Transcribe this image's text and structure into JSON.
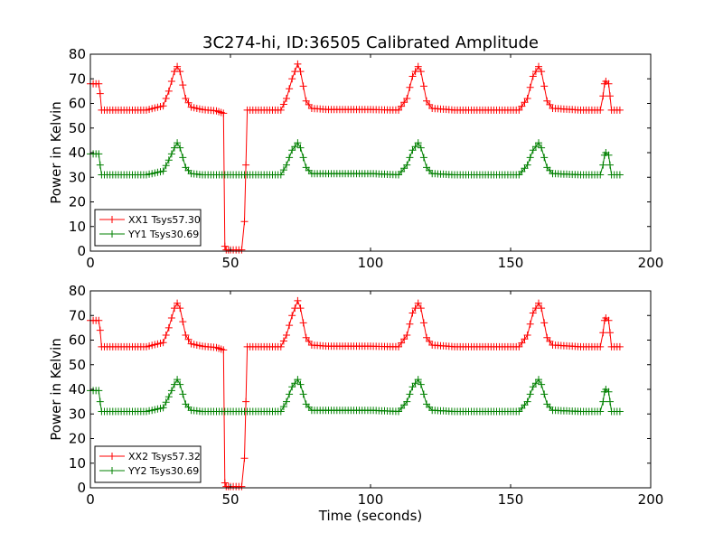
{
  "figure": {
    "title": "3C274-hi, ID:36505 Calibrated Amplitude"
  },
  "chart_data": [
    {
      "type": "line",
      "title": "3C274-hi, ID:36505 Calibrated Amplitude",
      "xlabel": "",
      "ylabel": "Power in Kelvin",
      "xlim": [
        0,
        200
      ],
      "ylim": [
        0,
        80
      ],
      "xticks": [
        "0",
        "50",
        "100",
        "150",
        "200"
      ],
      "yticks": [
        "0",
        "10",
        "20",
        "30",
        "40",
        "50",
        "60",
        "70",
        "80"
      ],
      "grid": false,
      "legend_position": "lower-left",
      "series": [
        {
          "name": "XX1 Tsys57.30",
          "color": "#ff0000",
          "x": [
            0,
            3,
            3.5,
            4,
            10,
            20,
            26,
            28,
            30,
            31,
            32,
            34,
            36,
            40,
            45,
            47.5,
            48,
            48.5,
            50,
            54,
            55,
            55.5,
            56,
            60,
            68,
            70,
            72,
            74,
            75,
            77,
            79,
            85,
            100,
            110,
            113,
            115,
            117,
            118,
            120,
            122,
            130,
            145,
            153,
            156,
            158,
            160,
            161,
            163,
            165,
            175,
            182,
            183,
            183.5,
            184,
            185,
            185.5,
            186,
            189
          ],
          "y": [
            68,
            68,
            64,
            57.3,
            57.3,
            57.3,
            59,
            65,
            73,
            75,
            73,
            62,
            58.5,
            57.5,
            57,
            56,
            2,
            0.5,
            0.5,
            0.5,
            12,
            35,
            57.3,
            57.3,
            57.3,
            62,
            70,
            76,
            73,
            61,
            58,
            57.5,
            57.5,
            57.3,
            62,
            71,
            75,
            73,
            61,
            58,
            57.3,
            57.3,
            57.3,
            62,
            71,
            75,
            73,
            61,
            58,
            57.3,
            57.3,
            63,
            68,
            69,
            68,
            63,
            57.3,
            57.3
          ]
        },
        {
          "name": "YY1 Tsys30.69",
          "color": "#008000",
          "x": [
            0,
            3,
            3.5,
            4,
            10,
            20,
            26,
            28,
            30,
            31,
            32,
            34,
            36,
            40,
            60,
            68,
            70,
            72,
            74,
            75,
            77,
            79,
            85,
            100,
            110,
            113,
            115,
            117,
            118,
            120,
            122,
            130,
            145,
            153,
            156,
            158,
            160,
            161,
            163,
            165,
            175,
            182,
            183,
            183.5,
            184,
            185,
            185.5,
            186,
            189
          ],
          "y": [
            39.5,
            39.5,
            35,
            31,
            31,
            31,
            32.5,
            37,
            42,
            44,
            42,
            34,
            31.5,
            31,
            31,
            31,
            35,
            41,
            44,
            42,
            34,
            31.5,
            31.5,
            31.5,
            31,
            35,
            41,
            44,
            42,
            34,
            31.5,
            31,
            31,
            31,
            35,
            41,
            44,
            42,
            34,
            31.5,
            31,
            31,
            35,
            39,
            40,
            39,
            35,
            31,
            31
          ]
        }
      ]
    },
    {
      "type": "line",
      "title": "",
      "xlabel": "Time (seconds)",
      "ylabel": "Power in Kelvin",
      "xlim": [
        0,
        200
      ],
      "ylim": [
        0,
        80
      ],
      "xticks": [
        "0",
        "50",
        "100",
        "150",
        "200"
      ],
      "yticks": [
        "0",
        "10",
        "20",
        "30",
        "40",
        "50",
        "60",
        "70",
        "80"
      ],
      "grid": false,
      "legend_position": "lower-left",
      "series": [
        {
          "name": "XX2 Tsys57.32",
          "color": "#ff0000",
          "x": [
            0,
            3,
            3.5,
            4,
            10,
            20,
            26,
            28,
            30,
            31,
            32,
            34,
            36,
            40,
            45,
            47.5,
            48,
            48.5,
            50,
            54,
            55,
            55.5,
            56,
            60,
            68,
            70,
            72,
            74,
            75,
            77,
            79,
            85,
            100,
            110,
            113,
            115,
            117,
            118,
            120,
            122,
            130,
            145,
            153,
            156,
            158,
            160,
            161,
            163,
            165,
            175,
            182,
            183,
            183.5,
            184,
            185,
            185.5,
            186,
            189
          ],
          "y": [
            68,
            68,
            64,
            57.3,
            57.3,
            57.3,
            59,
            65,
            73,
            75,
            73,
            62,
            58.5,
            57.5,
            57,
            56,
            2,
            0.5,
            0.5,
            0.5,
            12,
            35,
            57.3,
            57.3,
            57.3,
            62,
            70,
            76,
            73,
            61,
            58,
            57.5,
            57.5,
            57.3,
            62,
            71,
            75,
            73,
            61,
            58,
            57.3,
            57.3,
            57.3,
            62,
            71,
            75,
            73,
            61,
            58,
            57.3,
            57.3,
            63,
            68,
            69,
            68,
            63,
            57.3,
            57.3
          ]
        },
        {
          "name": "YY2 Tsys30.69",
          "color": "#008000",
          "x": [
            0,
            3,
            3.5,
            4,
            10,
            20,
            26,
            28,
            30,
            31,
            32,
            34,
            36,
            40,
            60,
            68,
            70,
            72,
            74,
            75,
            77,
            79,
            85,
            100,
            110,
            113,
            115,
            117,
            118,
            120,
            122,
            130,
            145,
            153,
            156,
            158,
            160,
            161,
            163,
            165,
            175,
            182,
            183,
            183.5,
            184,
            185,
            185.5,
            186,
            189
          ],
          "y": [
            39.5,
            39.5,
            35,
            31,
            31,
            31,
            32.5,
            37,
            42,
            44,
            42,
            34,
            31.5,
            31,
            31,
            31,
            35,
            41,
            44,
            42,
            34,
            31.5,
            31.5,
            31.5,
            31,
            35,
            41,
            44,
            42,
            34,
            31.5,
            31,
            31,
            31,
            35,
            41,
            44,
            42,
            34,
            31.5,
            31,
            31,
            35,
            39,
            40,
            39,
            35,
            31,
            31
          ]
        }
      ]
    }
  ]
}
